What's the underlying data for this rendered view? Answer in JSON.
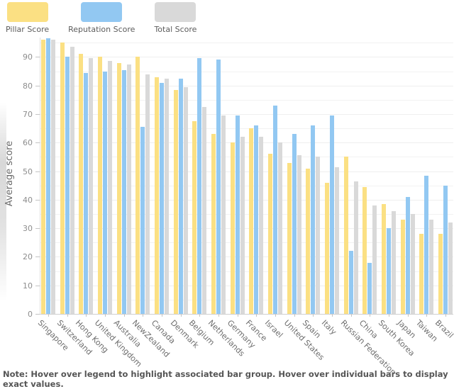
{
  "note": "Note: Hover over legend to highlight associated bar group. Hover over individual bars to display exact values.",
  "chart_data": {
    "type": "bar",
    "title": "",
    "xlabel": "",
    "ylabel": "Average score",
    "ylim": [
      0,
      96.8
    ],
    "y_tick_step": 10,
    "grid_step": 5,
    "grid": true,
    "legend_position": "top-left",
    "categories": [
      "Singapore",
      "Switzerland",
      "Hong Kong",
      "United Kingdom",
      "Australia",
      "NewZealand",
      "Canada",
      "Denmark",
      "Belgium",
      "Netherlands",
      "Germany",
      "France",
      "Israel",
      "United States",
      "Spain",
      "Italy",
      "Russian Federation",
      "China",
      "South Korea",
      "Japan",
      "Taiwan",
      "Brazil"
    ],
    "series": [
      {
        "name": "Pillar Score",
        "color": "#FBE083",
        "values": [
          96,
          95,
          91,
          90,
          88,
          90,
          83,
          78.5,
          67.5,
          63,
          60,
          65,
          56,
          53,
          51,
          46,
          55,
          44.5,
          38.5,
          33,
          28,
          28
        ]
      },
      {
        "name": "Reputation Score",
        "color": "#92C8F2",
        "values": [
          96.5,
          90,
          84.5,
          85,
          85.5,
          65.5,
          81,
          82.5,
          89.5,
          89,
          69.5,
          66,
          73,
          63,
          66,
          69.5,
          22,
          18,
          30,
          41,
          48.5,
          45
        ]
      },
      {
        "name": "Total Score",
        "color": "#D9D9D9",
        "values": [
          96,
          93.5,
          89.5,
          88.5,
          87.5,
          84,
          82.5,
          79.5,
          72.5,
          69.5,
          62,
          62,
          60,
          55.5,
          55,
          51.5,
          46.5,
          38,
          36,
          35,
          33,
          32
        ]
      }
    ]
  },
  "colors": {
    "pillar": "#FBE083",
    "reputation": "#92C8F2",
    "total": "#D9D9D9",
    "gridline": "#f2f2f2",
    "axis": "#cfcfcf"
  }
}
